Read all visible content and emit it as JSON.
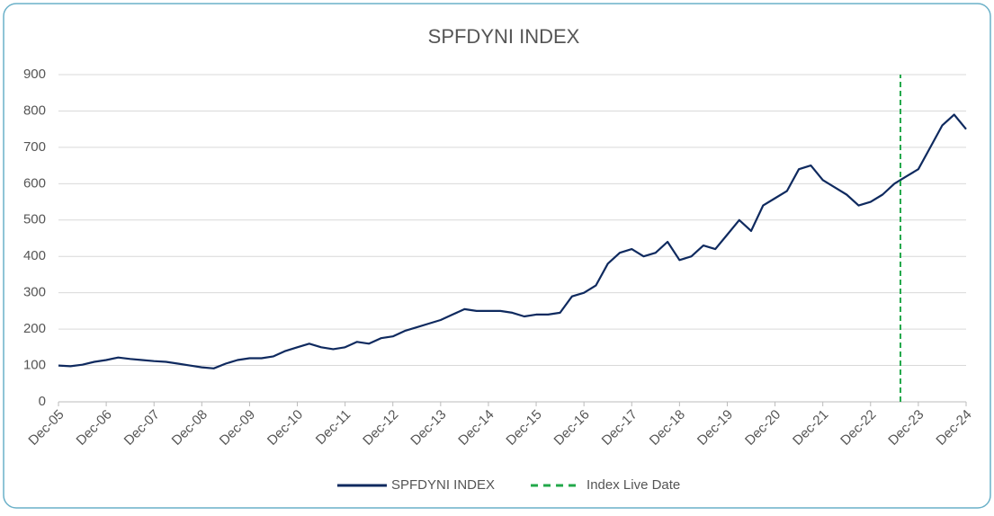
{
  "chart_data": {
    "type": "line",
    "title": "SPFDYNI INDEX",
    "categories": [
      "Dec-05",
      null,
      null,
      null,
      "Dec-06",
      null,
      null,
      null,
      "Dec-07",
      null,
      null,
      null,
      "Dec-08",
      null,
      null,
      null,
      "Dec-09",
      null,
      null,
      null,
      "Dec-10",
      null,
      null,
      null,
      "Dec-11",
      null,
      null,
      null,
      "Dec-12",
      null,
      null,
      null,
      "Dec-13",
      null,
      null,
      null,
      "Dec-14",
      null,
      null,
      null,
      "Dec-15",
      null,
      null,
      null,
      "Dec-16",
      null,
      null,
      null,
      "Dec-17",
      null,
      null,
      null,
      "Dec-18",
      null,
      null,
      null,
      "Dec-19",
      null,
      null,
      null,
      "Dec-20",
      null,
      null,
      null,
      "Dec-21",
      null,
      null,
      null,
      "Dec-22",
      null,
      null,
      null,
      "Dec-23",
      null,
      null,
      null,
      "Dec-24"
    ],
    "series": [
      {
        "name": "SPFDYNI INDEX",
        "color": "#0f2a5f",
        "values": [
          100,
          98,
          102,
          110,
          115,
          122,
          118,
          115,
          112,
          110,
          105,
          100,
          95,
          92,
          105,
          115,
          120,
          120,
          125,
          140,
          150,
          160,
          150,
          145,
          150,
          165,
          160,
          175,
          180,
          195,
          205,
          215,
          225,
          240,
          255,
          250,
          250,
          250,
          245,
          235,
          240,
          240,
          245,
          290,
          300,
          320,
          380,
          410,
          420,
          400,
          410,
          440,
          390,
          400,
          430,
          420,
          460,
          500,
          470,
          540,
          560,
          580,
          640,
          650,
          610,
          590,
          570,
          540,
          550,
          570,
          600,
          620,
          640,
          700,
          760,
          790,
          750
        ]
      }
    ],
    "live_date": {
      "name": "Index Live Date",
      "color": "#22a84a",
      "position": 70.5
    },
    "ylim": [
      0,
      900
    ],
    "yticks": [
      0,
      100,
      200,
      300,
      400,
      500,
      600,
      700,
      800,
      900
    ],
    "grid": true,
    "legend": "bottom"
  }
}
